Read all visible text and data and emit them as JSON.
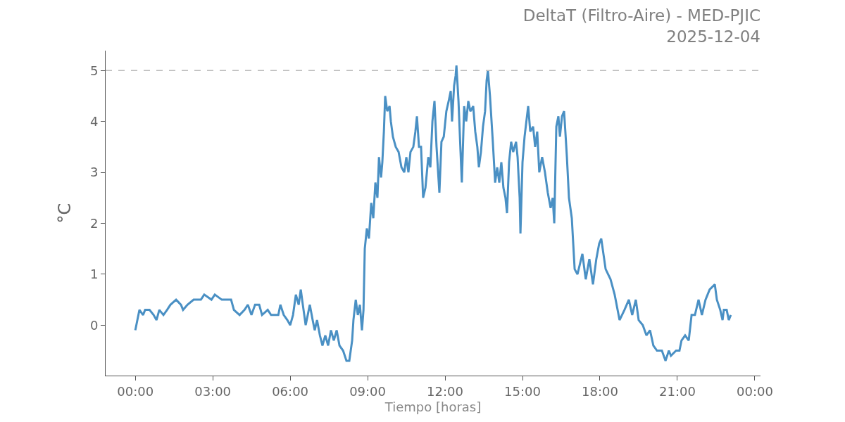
{
  "chart_data": {
    "type": "line",
    "title": "DeltaT (Filtro-Aire) - MED-PJIC",
    "subtitle": "2025-12-04",
    "xlabel": "Tiempo [horas]",
    "ylabel": "°C",
    "xlim": [
      -1.15,
      24.22
    ],
    "xticks": [
      {
        "value": 0,
        "label": "00:00"
      },
      {
        "value": 3,
        "label": "03:00"
      },
      {
        "value": 6,
        "label": "06:00"
      },
      {
        "value": 9,
        "label": "09:00"
      },
      {
        "value": 12,
        "label": "12:00"
      },
      {
        "value": 15,
        "label": "15:00"
      },
      {
        "value": 18,
        "label": "18:00"
      },
      {
        "value": 21,
        "label": "21:00"
      },
      {
        "value": 24,
        "label": "00:00"
      }
    ],
    "ylim": [
      -0.99,
      5.39
    ],
    "yticks": [
      0,
      1,
      2,
      3,
      4,
      5
    ],
    "grid": false,
    "marker": "none",
    "line_style": "solid",
    "ref_lines": [
      {
        "axis": "y",
        "value": 5,
        "color": "#bbbbbb",
        "line_style": "dashed"
      }
    ],
    "series": [
      {
        "color": "#4a90c4",
        "x": [
          0.0,
          0.08,
          0.16,
          0.3,
          0.38,
          0.55,
          0.71,
          0.82,
          0.93,
          1.09,
          1.23,
          1.36,
          1.58,
          1.77,
          1.85,
          2.02,
          2.26,
          2.54,
          2.67,
          2.95,
          3.08,
          3.35,
          3.71,
          3.82,
          4.04,
          4.23,
          4.36,
          4.5,
          4.64,
          4.8,
          4.91,
          5.13,
          5.26,
          5.54,
          5.62,
          5.75,
          5.89,
          6.0,
          6.11,
          6.22,
          6.33,
          6.41,
          6.49,
          6.6,
          6.68,
          6.76,
          6.87,
          6.95,
          7.04,
          7.15,
          7.25,
          7.36,
          7.47,
          7.58,
          7.69,
          7.8,
          7.91,
          8.05,
          8.18,
          8.29,
          8.4,
          8.45,
          8.54,
          8.62,
          8.7,
          8.78,
          8.84,
          8.89,
          8.97,
          9.05,
          9.14,
          9.22,
          9.3,
          9.38,
          9.44,
          9.52,
          9.57,
          9.63,
          9.68,
          9.76,
          9.85,
          9.9,
          9.98,
          10.09,
          10.2,
          10.31,
          10.42,
          10.5,
          10.58,
          10.66,
          10.77,
          10.85,
          10.91,
          10.99,
          11.07,
          11.15,
          11.24,
          11.35,
          11.43,
          11.51,
          11.59,
          11.67,
          11.78,
          11.86,
          11.95,
          12.05,
          12.14,
          12.22,
          12.27,
          12.35,
          12.41,
          12.44,
          12.52,
          12.6,
          12.65,
          12.74,
          12.82,
          12.9,
          12.98,
          13.09,
          13.17,
          13.25,
          13.31,
          13.39,
          13.47,
          13.55,
          13.61,
          13.66,
          13.74,
          13.85,
          13.94,
          14.02,
          14.1,
          14.18,
          14.26,
          14.34,
          14.4,
          14.48,
          14.56,
          14.64,
          14.75,
          14.81,
          14.89,
          14.92,
          15.0,
          15.08,
          15.22,
          15.3,
          15.41,
          15.49,
          15.57,
          15.65,
          15.76,
          15.87,
          15.98,
          16.09,
          16.17,
          16.23,
          16.31,
          16.39,
          16.45,
          16.53,
          16.61,
          16.66,
          16.72,
          16.8,
          16.91,
          17.02,
          17.13,
          17.32,
          17.45,
          17.59,
          17.73,
          17.86,
          17.97,
          18.05,
          18.22,
          18.41,
          18.57,
          18.76,
          18.95,
          19.12,
          19.25,
          19.39,
          19.5,
          19.66,
          19.8,
          19.94,
          20.07,
          20.21,
          20.4,
          20.54,
          20.67,
          20.75,
          20.95,
          21.08,
          21.16,
          21.3,
          21.44,
          21.55,
          21.68,
          21.82,
          21.95,
          22.09,
          22.25,
          22.45,
          22.53,
          22.66,
          22.75,
          22.8,
          22.91,
          22.99,
          23.07
        ],
        "values": [
          -0.1,
          0.1,
          0.3,
          0.2,
          0.3,
          0.3,
          0.2,
          0.1,
          0.3,
          0.2,
          0.3,
          0.4,
          0.5,
          0.4,
          0.3,
          0.4,
          0.5,
          0.5,
          0.6,
          0.5,
          0.6,
          0.5,
          0.5,
          0.3,
          0.2,
          0.3,
          0.4,
          0.2,
          0.4,
          0.4,
          0.2,
          0.3,
          0.2,
          0.2,
          0.4,
          0.2,
          0.1,
          0.0,
          0.2,
          0.6,
          0.4,
          0.7,
          0.4,
          0.0,
          0.2,
          0.4,
          0.1,
          -0.1,
          0.1,
          -0.2,
          -0.4,
          -0.2,
          -0.4,
          -0.1,
          -0.3,
          -0.1,
          -0.4,
          -0.5,
          -0.7,
          -0.7,
          -0.3,
          0.1,
          0.5,
          0.2,
          0.4,
          -0.1,
          0.3,
          1.5,
          1.9,
          1.7,
          2.4,
          2.1,
          2.8,
          2.5,
          3.3,
          2.9,
          3.2,
          3.8,
          4.5,
          4.2,
          4.3,
          4.0,
          3.7,
          3.5,
          3.4,
          3.1,
          3.0,
          3.3,
          3.0,
          3.4,
          3.5,
          3.8,
          4.1,
          3.5,
          3.5,
          2.5,
          2.7,
          3.3,
          3.1,
          4.0,
          4.4,
          3.5,
          2.6,
          3.6,
          3.7,
          4.2,
          4.4,
          4.6,
          4.0,
          4.7,
          4.9,
          5.1,
          4.4,
          3.4,
          2.8,
          4.3,
          4.0,
          4.4,
          4.2,
          4.3,
          3.8,
          3.5,
          3.1,
          3.4,
          3.9,
          4.2,
          4.8,
          5.0,
          4.5,
          3.6,
          2.8,
          3.1,
          2.8,
          3.2,
          2.7,
          2.5,
          2.2,
          3.2,
          3.6,
          3.4,
          3.6,
          3.3,
          2.5,
          1.8,
          3.2,
          3.7,
          4.3,
          3.8,
          3.9,
          3.5,
          3.8,
          3.0,
          3.3,
          3.0,
          2.6,
          2.3,
          2.5,
          2.0,
          3.9,
          4.1,
          3.7,
          4.1,
          4.2,
          3.8,
          3.3,
          2.5,
          2.1,
          1.1,
          1.0,
          1.4,
          0.9,
          1.3,
          0.8,
          1.3,
          1.6,
          1.7,
          1.1,
          0.9,
          0.6,
          0.1,
          0.3,
          0.5,
          0.2,
          0.5,
          0.1,
          0.0,
          -0.2,
          -0.1,
          -0.4,
          -0.5,
          -0.5,
          -0.7,
          -0.5,
          -0.6,
          -0.5,
          -0.5,
          -0.3,
          -0.2,
          -0.3,
          0.2,
          0.2,
          0.5,
          0.2,
          0.5,
          0.7,
          0.8,
          0.5,
          0.3,
          0.1,
          0.3,
          0.3,
          0.1,
          0.2
        ]
      }
    ]
  }
}
